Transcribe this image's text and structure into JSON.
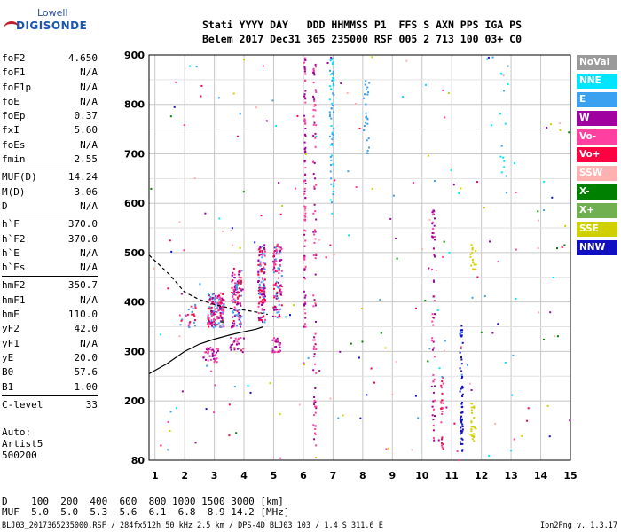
{
  "logo": {
    "line1": "Lowell",
    "line2": "DIGISONDE"
  },
  "header": {
    "line1": "Stati YYYY DAY   DDD HHMMSS P1  FFS S AXN PPS IGA PS",
    "line2": "Belem 2017 Dec31 365 235000 RSF 005 2 713 100 03+ C0"
  },
  "params_groups": [
    [
      {
        "k": "foF2",
        "v": "4.650"
      },
      {
        "k": "foF1",
        "v": "N/A"
      },
      {
        "k": "foF1p",
        "v": "N/A"
      },
      {
        "k": "foE",
        "v": "N/A"
      },
      {
        "k": "foEp",
        "v": "0.37"
      },
      {
        "k": "fxI",
        "v": "5.60"
      },
      {
        "k": "foEs",
        "v": "N/A"
      },
      {
        "k": "fmin",
        "v": "2.55"
      }
    ],
    [
      {
        "k": "MUF(D)",
        "v": "14.24"
      },
      {
        "k": "M(D)",
        "v": "3.06"
      },
      {
        "k": "D",
        "v": "N/A"
      }
    ],
    [
      {
        "k": "h`F",
        "v": "370.0"
      },
      {
        "k": "h`F2",
        "v": "370.0"
      },
      {
        "k": "h`E",
        "v": "N/A"
      },
      {
        "k": "h`Es",
        "v": "N/A"
      }
    ],
    [
      {
        "k": "hmF2",
        "v": "350.7"
      },
      {
        "k": "hmF1",
        "v": "N/A"
      },
      {
        "k": "hmE",
        "v": "110.0"
      },
      {
        "k": "yF2",
        "v": "42.0"
      },
      {
        "k": "yF1",
        "v": "N/A"
      },
      {
        "k": "yE",
        "v": "20.0"
      },
      {
        "k": "B0",
        "v": "57.6"
      },
      {
        "k": "B1",
        "v": "1.00"
      }
    ],
    [
      {
        "k": "C-level",
        "v": "33"
      }
    ]
  ],
  "autoscale": {
    "line1": "Auto:",
    "line2": "Artist5",
    "line3": "500200"
  },
  "legend": [
    {
      "label": "NoVal",
      "color": "#9a9a9a"
    },
    {
      "label": "NNE",
      "color": "#00e5ff"
    },
    {
      "label": "E",
      "color": "#3aa0f0"
    },
    {
      "label": "W",
      "color": "#a000a0"
    },
    {
      "label": "Vo-",
      "color": "#ff40a0"
    },
    {
      "label": "Vo+",
      "color": "#ff0040"
    },
    {
      "label": "SSW",
      "color": "#ffb0b0"
    },
    {
      "label": "X-",
      "color": "#008000"
    },
    {
      "label": "X+",
      "color": "#70b050"
    },
    {
      "label": "SSE",
      "color": "#d0d000"
    },
    {
      "label": "NNW",
      "color": "#1010c0"
    }
  ],
  "dmuf": {
    "line1": "D    100  200  400  600  800 1000 1500 3000 [km]",
    "line2": "MUF  5.0  5.0  5.3  5.6  6.1  6.8  8.9 14.2 [MHz]"
  },
  "footer": {
    "text": "BLJ03_2017365235000.RSF / 284fx512h 50 kHz 2.5 km / DPS-4D BLJ03 103 / 1.4 S 311.6 E",
    "version": "Ion2Png v. 1.3.17"
  },
  "chart_data": {
    "type": "scatter",
    "xlim": [
      0.8,
      15
    ],
    "ylim": [
      80,
      900
    ],
    "x_ticks": [
      1,
      2,
      3,
      4,
      5,
      6,
      7,
      8,
      9,
      10,
      11,
      12,
      13,
      14,
      15
    ],
    "y_ticks": [
      80,
      200,
      300,
      400,
      500,
      600,
      700,
      800,
      900
    ],
    "grid": true,
    "legend_position": "right",
    "traces": [
      {
        "name": "virtual-height-trace",
        "style": "dashed",
        "points": [
          [
            0.8,
            495
          ],
          [
            1.5,
            455
          ],
          [
            2,
            420
          ],
          [
            2.5,
            405
          ],
          [
            3,
            395
          ],
          [
            3.5,
            388
          ],
          [
            4,
            384
          ],
          [
            4.4,
            380
          ],
          [
            4.8,
            375
          ]
        ]
      },
      {
        "name": "true-height-profile",
        "style": "solid",
        "points": [
          [
            0.8,
            255
          ],
          [
            1.4,
            275
          ],
          [
            2,
            300
          ],
          [
            2.5,
            315
          ],
          [
            3,
            325
          ],
          [
            3.5,
            333
          ],
          [
            4,
            340
          ],
          [
            4.4,
            345
          ],
          [
            4.65,
            350
          ]
        ]
      }
    ],
    "clusters": [
      {
        "x0": 2.75,
        "x1": 3.3,
        "y0": 350,
        "y1": 420,
        "n": 170,
        "colors": [
          "#a000a0",
          "#ff40a0",
          "#3aa0f0",
          "#ff0040"
        ]
      },
      {
        "x0": 2.6,
        "x1": 3.1,
        "y0": 280,
        "y1": 310,
        "n": 40,
        "colors": [
          "#a000a0",
          "#ff40a0"
        ]
      },
      {
        "x0": 3.55,
        "x1": 3.9,
        "y0": 350,
        "y1": 470,
        "n": 110,
        "colors": [
          "#a000a0",
          "#ff40a0",
          "#3aa0f0",
          "#ff0040"
        ]
      },
      {
        "x0": 4.45,
        "x1": 4.7,
        "y0": 360,
        "y1": 520,
        "n": 120,
        "colors": [
          "#a000a0",
          "#ff40a0",
          "#3aa0f0",
          "#ff0040"
        ]
      },
      {
        "x0": 4.95,
        "x1": 5.25,
        "y0": 370,
        "y1": 520,
        "n": 110,
        "colors": [
          "#a000a0",
          "#ff40a0",
          "#3aa0f0",
          "#ff0040"
        ]
      },
      {
        "x0": 4.9,
        "x1": 5.2,
        "y0": 300,
        "y1": 330,
        "n": 30,
        "colors": [
          "#a000a0",
          "#ff40a0"
        ]
      },
      {
        "x0": 3.5,
        "x1": 4.0,
        "y0": 300,
        "y1": 330,
        "n": 25,
        "colors": [
          "#a000a0",
          "#ff40a0"
        ]
      },
      {
        "x0": 1.8,
        "x1": 2.4,
        "y0": 350,
        "y1": 400,
        "n": 25,
        "colors": [
          "#ff40a0",
          "#ff0040",
          "#3aa0f0"
        ]
      },
      {
        "x0": 6.0,
        "x1": 6.05,
        "y0": 350,
        "y1": 900,
        "n": 90,
        "colors": [
          "#a000a0",
          "#ff40a0"
        ]
      },
      {
        "x0": 6.3,
        "x1": 6.4,
        "y0": 100,
        "y1": 900,
        "n": 90,
        "colors": [
          "#a000a0",
          "#ff40a0"
        ]
      },
      {
        "x0": 6.85,
        "x1": 7.0,
        "y0": 580,
        "y1": 900,
        "n": 60,
        "colors": [
          "#3aa0f0",
          "#00e5ff"
        ]
      },
      {
        "x0": 8.0,
        "x1": 8.2,
        "y0": 700,
        "y1": 860,
        "n": 25,
        "colors": [
          "#3aa0f0"
        ]
      },
      {
        "x0": 10.3,
        "x1": 10.4,
        "y0": 120,
        "y1": 600,
        "n": 60,
        "colors": [
          "#ff40a0",
          "#a000a0"
        ]
      },
      {
        "x0": 10.6,
        "x1": 10.7,
        "y0": 100,
        "y1": 250,
        "n": 25,
        "colors": [
          "#ff40a0",
          "#ff0040"
        ]
      },
      {
        "x0": 11.25,
        "x1": 11.35,
        "y0": 90,
        "y1": 360,
        "n": 60,
        "colors": [
          "#1010c0"
        ]
      },
      {
        "x0": 11.6,
        "x1": 11.8,
        "y0": 120,
        "y1": 200,
        "n": 25,
        "colors": [
          "#d0d000"
        ]
      },
      {
        "x0": 11.6,
        "x1": 11.8,
        "y0": 450,
        "y1": 520,
        "n": 15,
        "colors": [
          "#d0d000"
        ]
      },
      {
        "x0": 12.6,
        "x1": 12.9,
        "y0": 600,
        "y1": 880,
        "n": 15,
        "colors": [
          "#3aa0f0",
          "#00e5ff"
        ]
      },
      {
        "x0": 0.8,
        "x1": 15.0,
        "y0": 80,
        "y1": 900,
        "n": 220,
        "colors": [
          "#a000a0",
          "#3aa0f0",
          "#ff40a0",
          "#ff0040",
          "#1010c0",
          "#00e5ff",
          "#008000",
          "#d0d000",
          "#ffb0b0"
        ]
      }
    ]
  }
}
